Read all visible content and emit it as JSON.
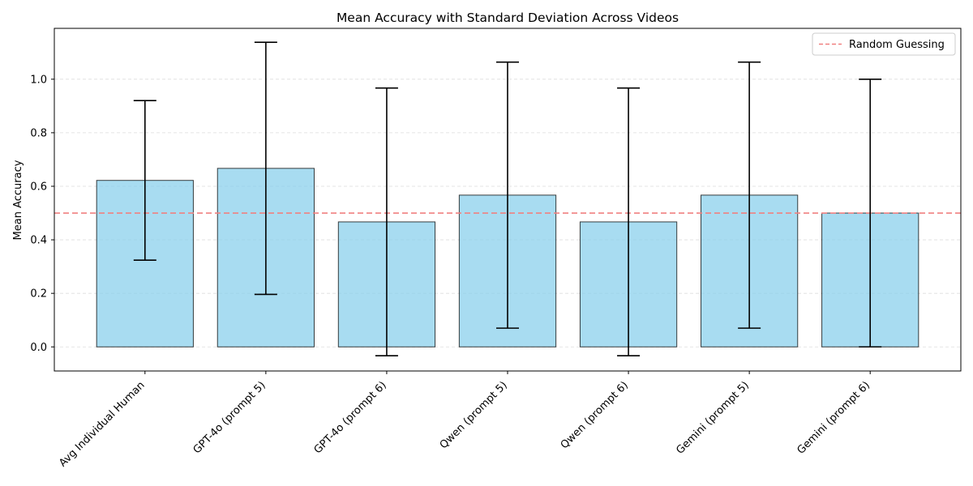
{
  "chart_data": {
    "type": "bar",
    "title": "Mean Accuracy with Standard Deviation Across Videos",
    "xlabel": "",
    "ylabel": "Mean Accuracy",
    "categories": [
      "Avg Individual Human",
      "GPT-4o (prompt 5)",
      "GPT-4o (prompt 6)",
      "Qwen (prompt 5)",
      "Qwen (prompt 6)",
      "Gemini (prompt 5)",
      "Gemini (prompt 6)"
    ],
    "values": [
      0.622,
      0.667,
      0.467,
      0.567,
      0.467,
      0.567,
      0.5
    ],
    "errors": [
      0.298,
      0.471,
      0.5,
      0.497,
      0.5,
      0.497,
      0.5
    ],
    "ylim": [
      -0.09,
      1.19
    ],
    "yticks": [
      0.0,
      0.2,
      0.4,
      0.6,
      0.8,
      1.0
    ],
    "ytick_labels": [
      "0.0",
      "0.2",
      "0.4",
      "0.6",
      "0.8",
      "1.0"
    ],
    "grid": true,
    "bar_color": "#87CEEB",
    "bar_edge_color": "#000000",
    "reference_line": {
      "label": "Random Guessing",
      "value": 0.5,
      "color": "#f08080",
      "style": "dashed"
    },
    "legend_placement": "top-right"
  }
}
